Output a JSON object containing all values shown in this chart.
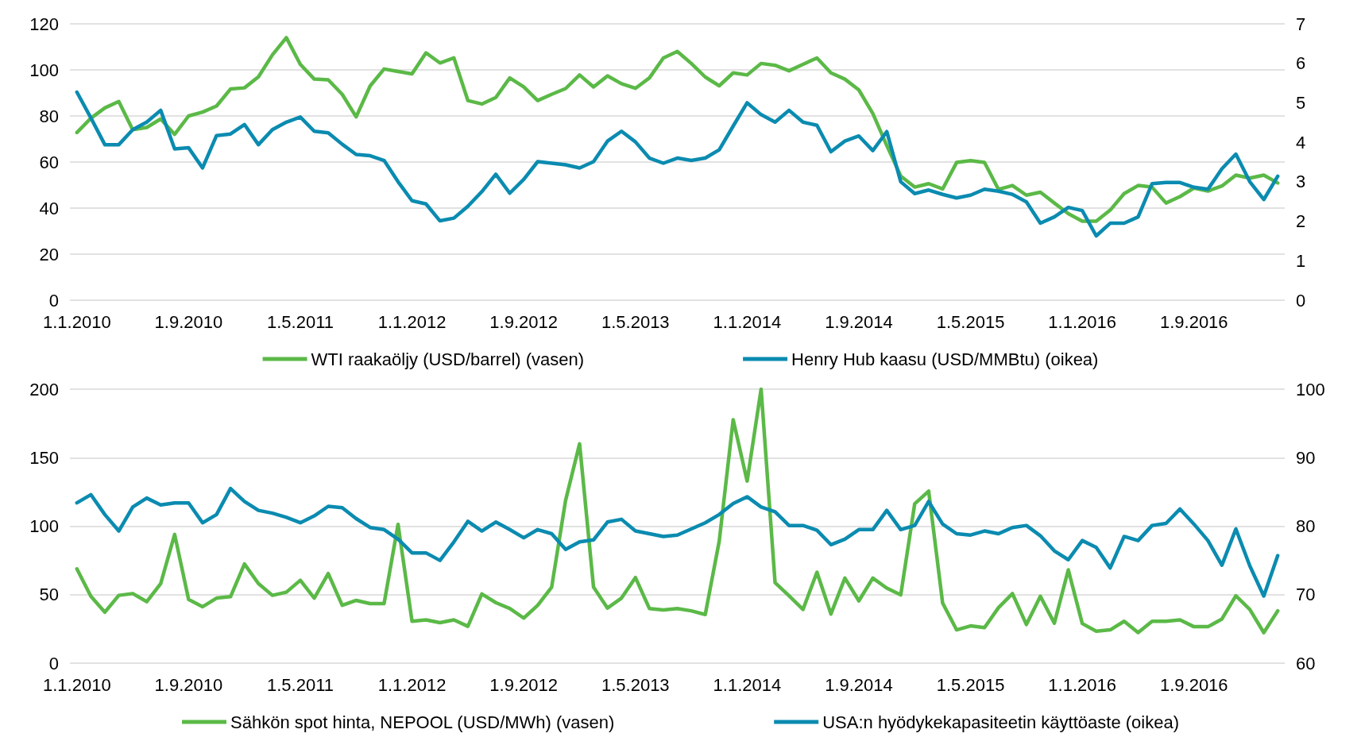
{
  "chart_data": [
    {
      "type": "line",
      "categories": [
        "1.1.2010",
        null,
        null,
        null,
        null,
        null,
        null,
        null,
        "1.9.2010",
        null,
        null,
        null,
        null,
        null,
        null,
        null,
        "1.5.2011",
        null,
        null,
        null,
        null,
        null,
        null,
        null,
        "1.1.2012",
        null,
        null,
        null,
        null,
        null,
        null,
        null,
        "1.9.2012",
        null,
        null,
        null,
        null,
        null,
        null,
        null,
        "1.5.2013",
        null,
        null,
        null,
        null,
        null,
        null,
        null,
        "1.1.2014",
        null,
        null,
        null,
        null,
        null,
        null,
        null,
        "1.9.2014",
        null,
        null,
        null,
        null,
        null,
        null,
        null,
        "1.5.2015",
        null,
        null,
        null,
        null,
        null,
        null,
        null,
        "1.1.2016",
        null,
        null,
        null,
        null,
        null,
        null,
        null,
        "1.9.2016",
        null,
        null,
        null,
        null,
        null,
        null
      ],
      "series": [
        {
          "name": "WTI raakaöljy (USD/barrel) (vasen)",
          "color": "#5bb947",
          "values": [
            72.8,
            79,
            83.5,
            86.3,
            74,
            75,
            78.7,
            72,
            80,
            81.7,
            84.3,
            91.7,
            92.2,
            97,
            106.5,
            114,
            102.4,
            96,
            95.7,
            89.4,
            79.6,
            93,
            100.4,
            99.3,
            98.3,
            107.4,
            103,
            105.2,
            86.7,
            85.2,
            88,
            96.5,
            92.6,
            86.7,
            89.4,
            91.9,
            97.8,
            92.6,
            97.4,
            94,
            92,
            96.5,
            105.2,
            108,
            102.8,
            96.9,
            93.1,
            98.7,
            97.8,
            102.8,
            102,
            99.6,
            102.4,
            105.2,
            98.7,
            96,
            91.3,
            81.1,
            67.2,
            53.9,
            49.1,
            50.6,
            48.3,
            59.8,
            60.6,
            59.8,
            48.1,
            49.8,
            45.6,
            46.9,
            42.2,
            37.6,
            34.3,
            34.3,
            39.1,
            46.3,
            49.8,
            49.1,
            42.2,
            45,
            48.7,
            47.4,
            49.6,
            54.3,
            53,
            54.3,
            50.9
          ]
        },
        {
          "name": "Henry Hub kaasu (USD/MMBtu) (oikea)",
          "color": "#0b8bb0",
          "axis": "y2",
          "values": [
            5.27,
            4.62,
            3.94,
            3.94,
            4.32,
            4.51,
            4.81,
            3.83,
            3.86,
            3.35,
            4.17,
            4.21,
            4.45,
            3.94,
            4.32,
            4.51,
            4.64,
            4.28,
            4.24,
            3.95,
            3.69,
            3.66,
            3.54,
            3.0,
            2.52,
            2.44,
            2.01,
            2.08,
            2.38,
            2.75,
            3.19,
            2.71,
            3.06,
            3.51,
            3.47,
            3.43,
            3.35,
            3.51,
            4.03,
            4.28,
            4.01,
            3.6,
            3.47,
            3.6,
            3.54,
            3.6,
            3.81,
            4.41,
            5.0,
            4.7,
            4.51,
            4.81,
            4.51,
            4.43,
            3.76,
            4.03,
            4.16,
            3.79,
            4.27,
            3.0,
            2.7,
            2.79,
            2.68,
            2.59,
            2.66,
            2.81,
            2.76,
            2.68,
            2.49,
            1.95,
            2.11,
            2.35,
            2.27,
            1.63,
            1.95,
            1.95,
            2.11,
            2.95,
            2.98,
            2.98,
            2.86,
            2.81,
            3.33,
            3.7,
            3.0,
            2.55,
            3.14
          ]
        }
      ],
      "ylim": [
        0,
        120
      ],
      "yticks": [
        0,
        20,
        40,
        60,
        80,
        100,
        120
      ],
      "y2lim": [
        0,
        7
      ],
      "y2ticks": [
        0,
        1,
        2,
        3,
        4,
        5,
        6,
        7
      ],
      "grid": "y",
      "legend": "bottom",
      "marker": "none",
      "line_style": "solid"
    },
    {
      "type": "line",
      "categories": [
        "1.1.2010",
        null,
        null,
        null,
        null,
        null,
        null,
        null,
        "1.9.2010",
        null,
        null,
        null,
        null,
        null,
        null,
        null,
        "1.5.2011",
        null,
        null,
        null,
        null,
        null,
        null,
        null,
        "1.1.2012",
        null,
        null,
        null,
        null,
        null,
        null,
        null,
        "1.9.2012",
        null,
        null,
        null,
        null,
        null,
        null,
        null,
        "1.5.2013",
        null,
        null,
        null,
        null,
        null,
        null,
        null,
        "1.1.2014",
        null,
        null,
        null,
        null,
        null,
        null,
        null,
        "1.9.2014",
        null,
        null,
        null,
        null,
        null,
        null,
        null,
        "1.5.2015",
        null,
        null,
        null,
        null,
        null,
        null,
        null,
        "1.1.2016",
        null,
        null,
        null,
        null,
        null,
        null,
        null,
        "1.9.2016",
        null,
        null,
        null,
        null,
        null,
        null
      ],
      "series": [
        {
          "name": "Sähkön spot hinta, NEPOOL (USD/MWh) (vasen)",
          "color": "#5bb947",
          "values": [
            68.8,
            48.8,
            37.2,
            49.5,
            50.8,
            44.9,
            58.1,
            94,
            46.5,
            41.2,
            47.5,
            48.5,
            72.4,
            58.1,
            49.5,
            51.8,
            60.5,
            47.5,
            65.4,
            42.2,
            45.8,
            43.5,
            43.5,
            101.3,
            30.6,
            31.6,
            29.6,
            31.6,
            26.9,
            50.5,
            44.2,
            39.9,
            32.9,
            42.2,
            55.5,
            118.9,
            160.1,
            55.5,
            40.2,
            47.5,
            62.5,
            39.9,
            38.9,
            39.9,
            38.2,
            35.5,
            89,
            177.7,
            132.9,
            200,
            58.8,
            49.2,
            39.2,
            66.4,
            35.9,
            62.1,
            45.5,
            62.1,
            54.8,
            49.8,
            116.3,
            125.6,
            43.9,
            24.3,
            27.2,
            25.9,
            40.5,
            50.8,
            28.2,
            48.8,
            29.2,
            68.1,
            28.9,
            23.3,
            24.3,
            30.6,
            22.3,
            30.6,
            30.6,
            31.6,
            26.6,
            26.6,
            32.2,
            49.2,
            39.2,
            22.3,
            38.2
          ]
        },
        {
          "name": "USA:n hyödykekapasiteetin käyttöaste (oikea)",
          "color": "#0b8bb0",
          "axis": "y2",
          "values": [
            83.4,
            84.6,
            81.7,
            79.3,
            82.8,
            84.1,
            83.1,
            83.4,
            83.4,
            80.5,
            81.7,
            85.5,
            83.6,
            82.3,
            81.9,
            81.3,
            80.5,
            81.5,
            82.9,
            82.7,
            81.1,
            79.8,
            79.5,
            78.1,
            76.1,
            76.1,
            75,
            77.7,
            80.7,
            79.3,
            80.6,
            79.5,
            78.3,
            79.5,
            78.9,
            76.6,
            77.7,
            78,
            80.6,
            81,
            79.3,
            78.9,
            78.5,
            78.7,
            79.6,
            80.5,
            81.7,
            83.3,
            84.3,
            82.8,
            82.1,
            80.1,
            80.1,
            79.4,
            77.3,
            78.1,
            79.5,
            79.5,
            82.3,
            79.5,
            80.1,
            83.6,
            80.3,
            78.9,
            78.7,
            79.3,
            78.9,
            79.8,
            80.1,
            78.6,
            76.4,
            75.1,
            77.9,
            76.9,
            73.9,
            78.5,
            77.9,
            80.1,
            80.4,
            82.5,
            80.3,
            77.9,
            74.3,
            79.6,
            74.2,
            69.8,
            75.7
          ]
        }
      ],
      "ylim": [
        0,
        200
      ],
      "yticks": [
        0,
        50,
        100,
        150,
        200
      ],
      "y2lim": [
        60,
        100
      ],
      "y2ticks": [
        60,
        70,
        80,
        90,
        100
      ],
      "grid": "y",
      "legend": "bottom",
      "marker": "none",
      "line_style": "solid"
    }
  ]
}
